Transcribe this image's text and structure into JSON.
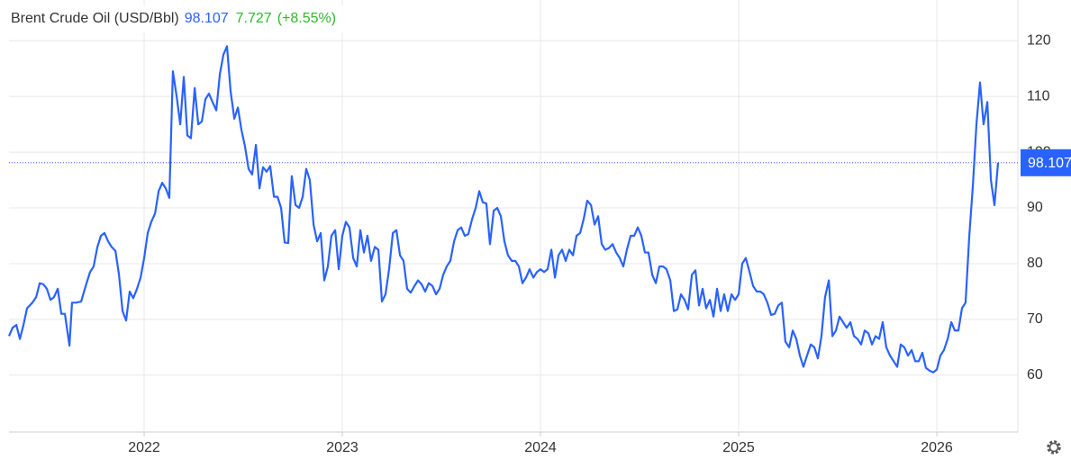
{
  "chart_data": {
    "type": "line",
    "title": "Brent Crude Oil (USD/Bbl)",
    "last": "98.107",
    "change": "7.727",
    "change_pct": "(+8.55%)",
    "xlim": [
      2021.318,
      2026.409
    ],
    "xticks": [
      2022,
      2023,
      2024,
      2025,
      2026
    ],
    "ylim": [
      49.8,
      127.3
    ],
    "yticks": [
      60,
      70,
      80,
      90,
      100,
      110,
      120
    ],
    "grid": true,
    "price_line": {
      "value": 98.107,
      "label": "98.107",
      "color": "#2962ff"
    },
    "series": [
      {
        "color": "#2962ff",
        "x": [
          2021.318,
          2021.336,
          2021.355,
          2021.373,
          2021.391,
          2021.409,
          2021.436,
          2021.455,
          2021.473,
          2021.491,
          2021.509,
          2021.527,
          2021.545,
          2021.564,
          2021.582,
          2021.6,
          2021.623,
          2021.636,
          2021.655,
          2021.682,
          2021.705,
          2021.727,
          2021.745,
          2021.764,
          2021.782,
          2021.8,
          2021.818,
          2021.836,
          2021.855,
          2021.873,
          2021.891,
          2021.909,
          2021.927,
          2021.945,
          2021.964,
          2021.982,
          2022.0,
          2022.018,
          2022.036,
          2022.055,
          2022.073,
          2022.091,
          2022.109,
          2022.127,
          2022.145,
          2022.164,
          2022.182,
          2022.2,
          2022.218,
          2022.236,
          2022.255,
          2022.273,
          2022.291,
          2022.309,
          2022.327,
          2022.345,
          2022.364,
          2022.382,
          2022.4,
          2022.418,
          2022.436,
          2022.455,
          2022.473,
          2022.491,
          2022.509,
          2022.527,
          2022.545,
          2022.564,
          2022.582,
          2022.6,
          2022.618,
          2022.636,
          2022.655,
          2022.673,
          2022.691,
          2022.709,
          2022.727,
          2022.745,
          2022.764,
          2022.782,
          2022.8,
          2022.818,
          2022.836,
          2022.855,
          2022.873,
          2022.891,
          2022.909,
          2022.927,
          2022.945,
          2022.964,
          2022.982,
          2023.0,
          2023.018,
          2023.036,
          2023.055,
          2023.073,
          2023.091,
          2023.109,
          2023.127,
          2023.145,
          2023.164,
          2023.182,
          2023.2,
          2023.218,
          2023.236,
          2023.255,
          2023.273,
          2023.291,
          2023.309,
          2023.327,
          2023.345,
          2023.364,
          2023.382,
          2023.4,
          2023.418,
          2023.436,
          2023.455,
          2023.473,
          2023.491,
          2023.509,
          2023.527,
          2023.545,
          2023.564,
          2023.582,
          2023.6,
          2023.618,
          2023.636,
          2023.655,
          2023.673,
          2023.691,
          2023.709,
          2023.727,
          2023.745,
          2023.764,
          2023.782,
          2023.8,
          2023.818,
          2023.836,
          2023.855,
          2023.873,
          2023.891,
          2023.909,
          2023.927,
          2023.945,
          2023.964,
          2023.982,
          2024.0,
          2024.018,
          2024.036,
          2024.055,
          2024.073,
          2024.091,
          2024.109,
          2024.127,
          2024.145,
          2024.164,
          2024.182,
          2024.2,
          2024.218,
          2024.236,
          2024.255,
          2024.273,
          2024.291,
          2024.309,
          2024.327,
          2024.345,
          2024.364,
          2024.382,
          2024.4,
          2024.418,
          2024.436,
          2024.455,
          2024.473,
          2024.491,
          2024.509,
          2024.527,
          2024.545,
          2024.564,
          2024.582,
          2024.6,
          2024.618,
          2024.636,
          2024.655,
          2024.673,
          2024.691,
          2024.709,
          2024.727,
          2024.745,
          2024.764,
          2024.782,
          2024.8,
          2024.818,
          2024.836,
          2024.855,
          2024.873,
          2024.891,
          2024.909,
          2024.927,
          2024.945,
          2024.964,
          2024.982,
          2025.0,
          2025.018,
          2025.036,
          2025.055,
          2025.073,
          2025.091,
          2025.109,
          2025.127,
          2025.145,
          2025.164,
          2025.182,
          2025.2,
          2025.218,
          2025.236,
          2025.255,
          2025.273,
          2025.291,
          2025.309,
          2025.327,
          2025.345,
          2025.364,
          2025.382,
          2025.4,
          2025.418,
          2025.436,
          2025.455,
          2025.473,
          2025.491,
          2025.509,
          2025.527,
          2025.545,
          2025.564,
          2025.582,
          2025.6,
          2025.618,
          2025.636,
          2025.655,
          2025.673,
          2025.691,
          2025.709,
          2025.727,
          2025.745,
          2025.764,
          2025.782,
          2025.8,
          2025.818,
          2025.836,
          2025.855,
          2025.873,
          2025.891,
          2025.909,
          2025.927,
          2025.945,
          2025.964,
          2025.982,
          2026.0,
          2026.018,
          2026.036,
          2026.055,
          2026.073,
          2026.091,
          2026.109,
          2026.127,
          2026.145,
          2026.164,
          2026.182,
          2026.2,
          2026.218,
          2026.236,
          2026.255,
          2026.273,
          2026.291,
          2026.309
        ],
        "values": [
          67,
          68.5,
          69,
          66.5,
          69,
          72,
          73,
          74,
          76.5,
          76.3,
          75.5,
          73.5,
          74,
          75.5,
          71,
          71,
          65.3,
          73,
          73,
          73.2,
          76,
          78.5,
          79.5,
          83,
          85,
          85.5,
          84,
          83,
          82.3,
          78,
          71.5,
          69.8,
          75,
          73.8,
          75.5,
          77.5,
          81,
          85.5,
          87.5,
          89,
          93,
          94.5,
          93.5,
          91.8,
          114.5,
          110,
          105,
          113.5,
          103,
          102.5,
          111.5,
          105,
          105.5,
          109.5,
          110.5,
          109,
          107.5,
          114,
          117.5,
          119,
          111,
          106,
          108,
          104,
          101,
          97,
          96,
          101.3,
          93.5,
          97.3,
          96.5,
          97.5,
          92,
          92,
          90,
          83.8,
          83.7,
          95.7,
          90.5,
          90,
          92,
          97,
          95,
          87,
          84,
          85.5,
          77,
          79.5,
          85,
          86,
          79,
          85,
          87.5,
          86.5,
          81,
          79.5,
          86,
          82,
          85,
          80.5,
          83,
          82.5,
          73.2,
          74.5,
          79,
          85.5,
          86,
          81.5,
          80.5,
          75.5,
          74.8,
          76,
          77,
          76.3,
          75,
          76.5,
          76,
          74.5,
          75.5,
          78,
          79.5,
          80.5,
          84,
          86,
          86.5,
          85,
          85.3,
          88,
          90,
          93,
          91,
          90.8,
          83.5,
          89.5,
          90,
          88.5,
          84,
          81.5,
          80.5,
          80.5,
          79.5,
          76.5,
          77.5,
          79,
          77.5,
          78.5,
          79,
          78.5,
          79,
          82.5,
          77.5,
          81.5,
          82.5,
          80.5,
          82.5,
          81.5,
          85,
          85.5,
          88,
          91.3,
          90.5,
          87,
          88.5,
          83.5,
          82.5,
          82.8,
          83.5,
          82,
          81,
          79.5,
          82.5,
          85,
          85,
          86.5,
          85,
          82,
          82,
          78,
          76.5,
          79.5,
          79.5,
          79,
          77,
          71.5,
          71.8,
          74.5,
          73.5,
          71.8,
          78,
          78.8,
          72.5,
          75.5,
          72,
          73.5,
          70.5,
          75.5,
          71.5,
          74.5,
          71.5,
          74.5,
          73.5,
          74.5,
          80,
          81,
          78.5,
          76,
          75,
          75,
          74.5,
          73,
          70.8,
          71,
          72.5,
          73,
          66,
          65,
          68,
          66.5,
          63.5,
          61.5,
          63.5,
          65.5,
          65,
          63,
          67,
          74,
          77,
          67,
          68,
          70.5,
          69.5,
          68.5,
          69.5,
          67,
          66.5,
          65.5,
          68,
          67.5,
          65.5,
          67,
          66.5,
          69.5,
          65,
          63.5,
          62.5,
          61.5,
          65.5,
          65,
          63.5,
          64.5,
          62.5,
          62.5,
          64,
          61.3,
          60.8,
          60.5,
          61,
          63.5,
          64.5,
          66.5,
          69.5,
          68,
          68,
          72,
          73,
          85,
          94,
          105,
          112.5,
          105,
          109,
          95,
          90.5,
          98.107
        ]
      }
    ]
  }
}
